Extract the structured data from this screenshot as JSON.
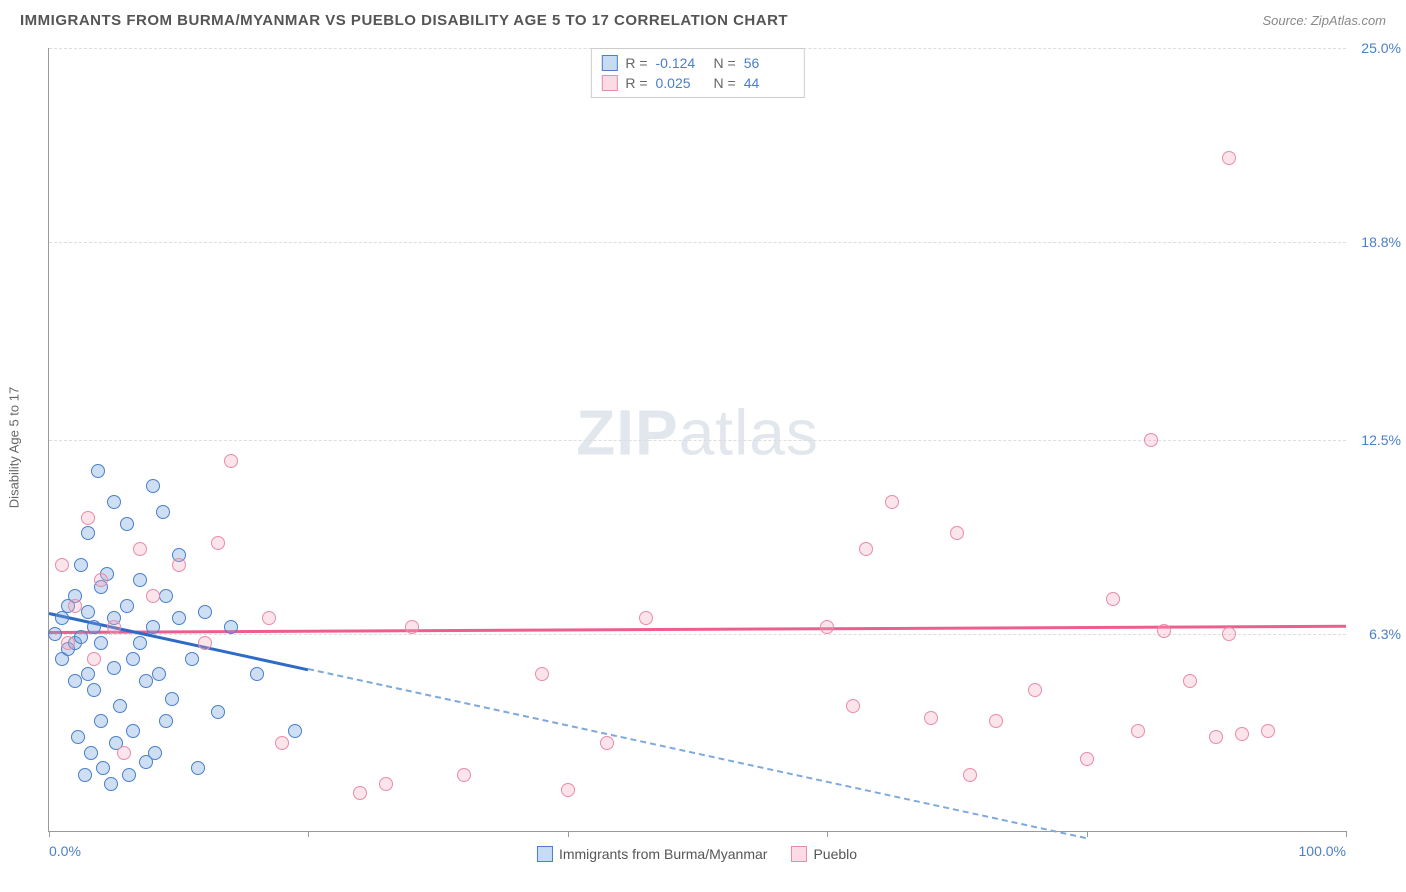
{
  "header": {
    "title": "IMMIGRANTS FROM BURMA/MYANMAR VS PUEBLO DISABILITY AGE 5 TO 17 CORRELATION CHART",
    "source": "Source: ZipAtlas.com"
  },
  "chart": {
    "type": "scatter",
    "y_axis_label": "Disability Age 5 to 17",
    "watermark": "ZIPatlas",
    "xlim": [
      0,
      100
    ],
    "ylim": [
      0,
      25
    ],
    "x_ticks": [
      0,
      20,
      40,
      60,
      80,
      100
    ],
    "x_tick_labels": {
      "0": "0.0%",
      "100": "100.0%"
    },
    "y_ticks": [
      6.3,
      12.5,
      18.8,
      25.0
    ],
    "y_tick_labels": [
      "6.3%",
      "12.5%",
      "18.8%",
      "25.0%"
    ],
    "grid_color": "#dddddd",
    "axis_color": "#999999",
    "background_color": "#ffffff",
    "label_color": "#4a7fc9",
    "series": [
      {
        "name": "Immigrants from Burma/Myanmar",
        "color_fill": "rgba(115,164,222,0.35)",
        "color_stroke": "#4a7fc9",
        "trend_color": "#2e6bc6",
        "trend_dash_color": "#7fa8dc",
        "R": "-0.124",
        "N": "56",
        "trend": {
          "x1": 0,
          "y1": 7.0,
          "x2": 20,
          "y2": 5.2,
          "dash_x2": 80,
          "dash_y2": -0.2
        },
        "points": [
          [
            0.5,
            6.3
          ],
          [
            1,
            6.8
          ],
          [
            1,
            5.5
          ],
          [
            1.5,
            7.2
          ],
          [
            1.5,
            5.8
          ],
          [
            2,
            6.0
          ],
          [
            2,
            7.5
          ],
          [
            2,
            4.8
          ],
          [
            2.2,
            3.0
          ],
          [
            2.5,
            8.5
          ],
          [
            2.5,
            6.2
          ],
          [
            3,
            7.0
          ],
          [
            3,
            5.0
          ],
          [
            3,
            9.5
          ],
          [
            3.2,
            2.5
          ],
          [
            3.5,
            6.5
          ],
          [
            3.5,
            4.5
          ],
          [
            4,
            7.8
          ],
          [
            4,
            6.0
          ],
          [
            4,
            3.5
          ],
          [
            4.2,
            2.0
          ],
          [
            4.5,
            8.2
          ],
          [
            5,
            6.8
          ],
          [
            5,
            5.2
          ],
          [
            5,
            10.5
          ],
          [
            5.2,
            2.8
          ],
          [
            5.5,
            4.0
          ],
          [
            6,
            7.2
          ],
          [
            6,
            9.8
          ],
          [
            6.5,
            5.5
          ],
          [
            6.5,
            3.2
          ],
          [
            7,
            6.0
          ],
          [
            7,
            8.0
          ],
          [
            7.5,
            4.8
          ],
          [
            7.5,
            2.2
          ],
          [
            8,
            11.0
          ],
          [
            8,
            6.5
          ],
          [
            8.5,
            5.0
          ],
          [
            8.8,
            10.2
          ],
          [
            9,
            7.5
          ],
          [
            9,
            3.5
          ],
          [
            10,
            6.8
          ],
          [
            10,
            8.8
          ],
          [
            11,
            5.5
          ],
          [
            12,
            7.0
          ],
          [
            11.5,
            2.0
          ],
          [
            3.8,
            11.5
          ],
          [
            6.2,
            1.8
          ],
          [
            4.8,
            1.5
          ],
          [
            2.8,
            1.8
          ],
          [
            8.2,
            2.5
          ],
          [
            19,
            3.2
          ],
          [
            13,
            3.8
          ],
          [
            14,
            6.5
          ],
          [
            16,
            5.0
          ],
          [
            9.5,
            4.2
          ]
        ]
      },
      {
        "name": "Pueblo",
        "color_fill": "rgba(244,166,188,0.3)",
        "color_stroke": "#e98bab",
        "trend_color": "#ec5e8f",
        "R": "0.025",
        "N": "44",
        "trend": {
          "x1": 0,
          "y1": 6.4,
          "x2": 100,
          "y2": 6.6
        },
        "points": [
          [
            1,
            8.5
          ],
          [
            1.5,
            6.0
          ],
          [
            2,
            7.2
          ],
          [
            3,
            10.0
          ],
          [
            3.5,
            5.5
          ],
          [
            4,
            8.0
          ],
          [
            5,
            6.5
          ],
          [
            5.8,
            2.5
          ],
          [
            7,
            9.0
          ],
          [
            8,
            7.5
          ],
          [
            10,
            8.5
          ],
          [
            12,
            6.0
          ],
          [
            13,
            9.2
          ],
          [
            14,
            11.8
          ],
          [
            17,
            6.8
          ],
          [
            18,
            2.8
          ],
          [
            24,
            1.2
          ],
          [
            26,
            1.5
          ],
          [
            28,
            6.5
          ],
          [
            32,
            1.8
          ],
          [
            38,
            5.0
          ],
          [
            40,
            1.3
          ],
          [
            43,
            2.8
          ],
          [
            46,
            6.8
          ],
          [
            60,
            6.5
          ],
          [
            62,
            4.0
          ],
          [
            63,
            9.0
          ],
          [
            65,
            10.5
          ],
          [
            68,
            3.6
          ],
          [
            70,
            9.5
          ],
          [
            71,
            1.8
          ],
          [
            73,
            3.5
          ],
          [
            80,
            2.3
          ],
          [
            82,
            7.4
          ],
          [
            84,
            3.2
          ],
          [
            85,
            12.5
          ],
          [
            86,
            6.4
          ],
          [
            88,
            4.8
          ],
          [
            90,
            3.0
          ],
          [
            91,
            6.3
          ],
          [
            92,
            3.1
          ],
          [
            94,
            3.2
          ],
          [
            91,
            21.5
          ],
          [
            76,
            4.5
          ]
        ]
      }
    ],
    "stats_box": {
      "rows": [
        {
          "swatch": "blue",
          "R": "-0.124",
          "N": "56"
        },
        {
          "swatch": "pink",
          "R": "0.025",
          "N": "44"
        }
      ]
    },
    "bottom_legend": [
      {
        "swatch": "blue",
        "label": "Immigrants from Burma/Myanmar"
      },
      {
        "swatch": "pink",
        "label": "Pueblo"
      }
    ]
  }
}
